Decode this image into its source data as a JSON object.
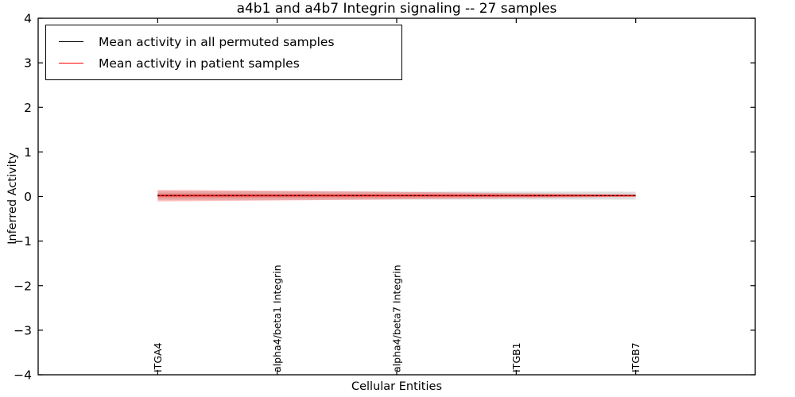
{
  "chart_data": {
    "type": "line",
    "title": "a4b1 and a4b7 Integrin signaling -- 27 samples",
    "xlabel": "Cellular Entities",
    "ylabel": "Inferred Activity",
    "categories": [
      "ITGA4",
      "alpha4/beta1 Integrin",
      "alpha4/beta7 Integrin",
      "ITGB1",
      "ITGB7"
    ],
    "ylim": [
      -4,
      4
    ],
    "yticks": [
      4,
      3,
      2,
      1,
      0,
      -1,
      -2,
      -3,
      -4
    ],
    "xlim": [
      -1,
      5
    ],
    "grid": false,
    "legend_position": "upper left",
    "background_color": "#ffffff",
    "series": [
      {
        "name": "Mean activity in all permuted samples",
        "color": "#000000",
        "linestyle": "dotted",
        "linewidth": 1.3,
        "values": [
          0.02,
          0.02,
          0.02,
          0.02,
          0.02
        ],
        "band": {
          "halfwidths": [
            0.095,
            0.095,
            0.09,
            0.09,
            0.088
          ],
          "color": "#000000",
          "alpha": 0.13
        }
      },
      {
        "name": "Mean activity in patient samples",
        "color": "#ff0000",
        "linestyle": "solid",
        "linewidth": 1.8,
        "values": [
          0.02,
          0.02,
          0.02,
          0.02,
          0.02
        ],
        "band": {
          "halfwidths": [
            0.13,
            0.11,
            0.085,
            0.055,
            0.027
          ],
          "color": "#ff0000",
          "alpha": 0.25
        },
        "inner_band": {
          "halfwidths": [
            0.05,
            0.045,
            0.04,
            0.028,
            0.015
          ],
          "color": "#ff0000",
          "alpha": 0.2
        }
      }
    ]
  },
  "layout_text": {
    "note": ""
  }
}
